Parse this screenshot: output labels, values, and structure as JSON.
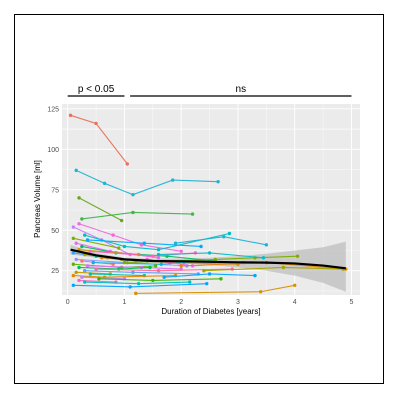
{
  "chart_data": {
    "type": "line",
    "title": "",
    "xlabel": "Duration of Diabetes [years]",
    "ylabel": "Pancreas Volume [ml]",
    "xlim": [
      -0.1,
      5.15
    ],
    "ylim": [
      10,
      128
    ],
    "xticks": [
      "0",
      "1",
      "2",
      "3",
      "4",
      "5"
    ],
    "yticks": [
      "25",
      "50",
      "75",
      "100",
      "125"
    ],
    "grid": true,
    "background": "#ebebeb",
    "significance": [
      {
        "label": "p < 0.05",
        "x_range": [
          0.0,
          1.0
        ]
      },
      {
        "label": "ns",
        "x_range": [
          1.1,
          5.0
        ]
      }
    ],
    "trend": {
      "color": "#000000",
      "ci_color": "#bdbdbd",
      "points": [
        {
          "x": 0.05,
          "y": 38,
          "lo": 35,
          "hi": 41
        },
        {
          "x": 0.5,
          "y": 34.5,
          "lo": 33,
          "hi": 36
        },
        {
          "x": 1.0,
          "y": 32,
          "lo": 31,
          "hi": 33
        },
        {
          "x": 1.5,
          "y": 31,
          "lo": 30,
          "hi": 32.5
        },
        {
          "x": 2.0,
          "y": 30.8,
          "lo": 29.5,
          "hi": 32.5
        },
        {
          "x": 2.5,
          "y": 30.5,
          "lo": 28.5,
          "hi": 33
        },
        {
          "x": 3.0,
          "y": 30.2,
          "lo": 27,
          "hi": 34
        },
        {
          "x": 3.5,
          "y": 30,
          "lo": 25,
          "hi": 35.5
        },
        {
          "x": 4.0,
          "y": 29.5,
          "lo": 22,
          "hi": 37.5
        },
        {
          "x": 4.5,
          "y": 28.2,
          "lo": 17.5,
          "hi": 39.5
        },
        {
          "x": 4.9,
          "y": 26.5,
          "lo": 12,
          "hi": 43
        }
      ]
    },
    "series": [
      {
        "color": "#e8705d",
        "x": [
          0.05,
          0.5,
          1.05
        ],
        "y": [
          121,
          116,
          91
        ]
      },
      {
        "color": "#1fb3d6",
        "x": [
          0.15,
          0.65,
          1.15,
          1.85,
          2.65
        ],
        "y": [
          87,
          79,
          72,
          81,
          80
        ]
      },
      {
        "color": "#66a61e",
        "x": [
          0.2,
          0.95
        ],
        "y": [
          70,
          56
        ]
      },
      {
        "color": "#3fb54a",
        "x": [
          0.25,
          1.15,
          2.2
        ],
        "y": [
          57,
          61,
          60
        ]
      },
      {
        "color": "#c77cff",
        "x": [
          0.1,
          0.6,
          1.1
        ],
        "y": [
          52,
          44,
          35
        ]
      },
      {
        "color": "#f564e3",
        "x": [
          0.2,
          0.8,
          1.3,
          2.0
        ],
        "y": [
          54,
          47,
          41,
          37
        ]
      },
      {
        "color": "#00bfc4",
        "x": [
          0.3,
          1.0,
          1.6,
          2.85
        ],
        "y": [
          47,
          40,
          38,
          48
        ]
      },
      {
        "color": "#7cae00",
        "x": [
          0.1,
          0.9
        ],
        "y": [
          45,
          39
        ]
      },
      {
        "color": "#00a9ff",
        "x": [
          0.35,
          1.35,
          2.35
        ],
        "y": [
          44,
          42,
          40
        ]
      },
      {
        "color": "#e76bf3",
        "x": [
          0.15,
          0.75,
          1.6
        ],
        "y": [
          42,
          37,
          33
        ]
      },
      {
        "color": "#00be67",
        "x": [
          0.25,
          0.85,
          1.75,
          2.6
        ],
        "y": [
          40,
          36,
          34,
          31
        ]
      },
      {
        "color": "#cd9600",
        "x": [
          0.2,
          1.25
        ],
        "y": [
          38,
          35
        ]
      },
      {
        "color": "#ff61c3",
        "x": [
          0.4,
          1.5,
          2.25
        ],
        "y": [
          37,
          34,
          36
        ]
      },
      {
        "color": "#35a2ff",
        "x": [
          0.1,
          0.7,
          1.2
        ],
        "y": [
          36,
          33,
          31
        ]
      },
      {
        "color": "#a3a500",
        "x": [
          0.3,
          0.95,
          2.05
        ],
        "y": [
          35,
          32,
          30
        ]
      },
      {
        "color": "#00c08b",
        "x": [
          0.5,
          1.4
        ],
        "y": [
          34,
          31
        ]
      },
      {
        "color": "#d39200",
        "x": [
          0.6,
          1.8,
          3.0
        ],
        "y": [
          33,
          30,
          29
        ]
      },
      {
        "color": "#9590ff",
        "x": [
          0.15,
          1.05,
          2.1
        ],
        "y": [
          32,
          30,
          28
        ]
      },
      {
        "color": "#f8766d",
        "x": [
          0.25,
          0.8
        ],
        "y": [
          31,
          29
        ]
      },
      {
        "color": "#00b4f0",
        "x": [
          0.45,
          1.65,
          2.4
        ],
        "y": [
          30,
          29,
          31
        ]
      },
      {
        "color": "#5bb300",
        "x": [
          0.1,
          0.95,
          1.55
        ],
        "y": [
          29,
          27,
          28
        ]
      },
      {
        "color": "#db72fb",
        "x": [
          0.35,
          1.3,
          2.0
        ],
        "y": [
          28,
          27,
          26
        ]
      },
      {
        "color": "#00bd5c",
        "x": [
          0.2,
          0.9,
          1.45
        ],
        "y": [
          27,
          26,
          27
        ]
      },
      {
        "color": "#ff6c91",
        "x": [
          0.5,
          1.6,
          2.9
        ],
        "y": [
          26,
          25,
          26
        ]
      },
      {
        "color": "#619cff",
        "x": [
          0.3,
          1.15,
          2.3
        ],
        "y": [
          25,
          24,
          23
        ]
      },
      {
        "color": "#c49a00",
        "x": [
          0.15,
          0.75
        ],
        "y": [
          24,
          23
        ]
      },
      {
        "color": "#00c1a3",
        "x": [
          0.4,
          1.35
        ],
        "y": [
          23,
          22
        ]
      },
      {
        "color": "#e38900",
        "x": [
          0.1,
          0.65,
          1.9
        ],
        "y": [
          22,
          21,
          22
        ]
      },
      {
        "color": "#b983ff",
        "x": [
          0.25,
          1.0
        ],
        "y": [
          21,
          20
        ]
      },
      {
        "color": "#39b600",
        "x": [
          0.55,
          1.5,
          2.7
        ],
        "y": [
          20,
          19,
          20
        ]
      },
      {
        "color": "#ff62bc",
        "x": [
          0.2,
          0.85
        ],
        "y": [
          19,
          18
        ]
      },
      {
        "color": "#00bfc4",
        "x": [
          0.3,
          1.25,
          2.15
        ],
        "y": [
          18,
          17,
          18
        ]
      },
      {
        "color": "#00a5ff",
        "x": [
          0.1,
          1.1,
          2.45
        ],
        "y": [
          16,
          15,
          17
        ]
      },
      {
        "color": "#d89000",
        "x": [
          1.2,
          3.4,
          4.0
        ],
        "y": [
          11,
          12,
          16
        ]
      },
      {
        "color": "#7cae00",
        "x": [
          1.0,
          2.6,
          3.3,
          4.05
        ],
        "y": [
          30,
          32,
          33,
          34
        ]
      },
      {
        "color": "#00bfc4",
        "x": [
          1.6,
          2.5,
          3.45
        ],
        "y": [
          35,
          36,
          33
        ]
      },
      {
        "color": "#f564e3",
        "x": [
          1.4,
          2.2,
          3.1
        ],
        "y": [
          32,
          28,
          30
        ]
      },
      {
        "color": "#e38900",
        "x": [
          2.0,
          3.5,
          4.9
        ],
        "y": [
          28,
          30,
          26
        ]
      },
      {
        "color": "#00a9ff",
        "x": [
          1.7,
          2.5,
          3.3
        ],
        "y": [
          21,
          23,
          22
        ]
      },
      {
        "color": "#a3a500",
        "x": [
          2.4,
          3.8,
          4.85
        ],
        "y": [
          25,
          27,
          26
        ]
      },
      {
        "color": "#1fb3d6",
        "x": [
          1.9,
          2.75,
          3.5
        ],
        "y": [
          42,
          46,
          41
        ]
      }
    ]
  }
}
